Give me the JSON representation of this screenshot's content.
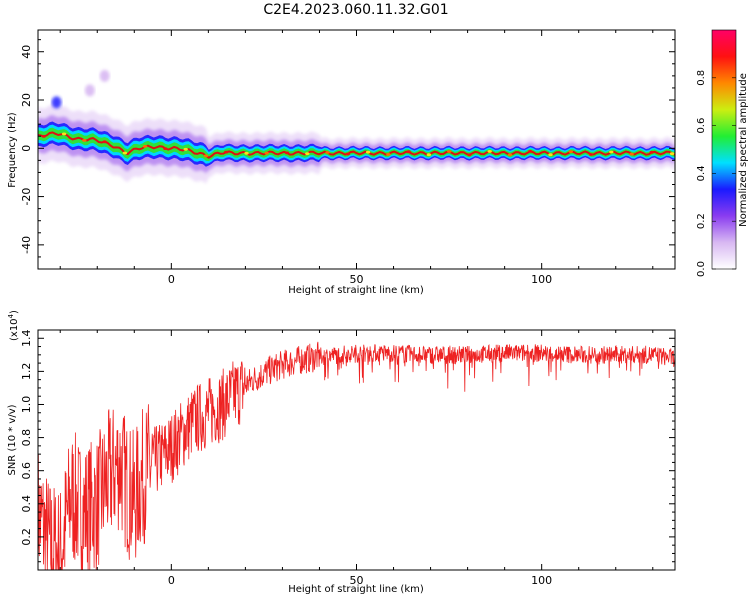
{
  "figure": {
    "title": "C2E4.2023.060.11.32.G01"
  },
  "colors": {
    "snr_line": "#ee2222",
    "ridge_core": "#dd1111",
    "colormap": [
      "#ffffff",
      "#d8b8f2",
      "#8a3cf0",
      "#1a1aff",
      "#00e0ff",
      "#22ee33",
      "#ccee11",
      "#ff8800",
      "#ff1111",
      "#ff0066"
    ]
  },
  "chart_data": [
    {
      "type": "heatmap",
      "title": "",
      "xlabel": "Height of straight line (km)",
      "ylabel": "Frequency (Hz)",
      "xlim": [
        -36,
        136
      ],
      "ylim": [
        -50,
        49
      ],
      "x_ticks": [
        0,
        50,
        100
      ],
      "y_ticks": [
        40,
        20,
        0,
        -20,
        -40
      ],
      "colorbar": {
        "label": "Normalized spectral amplitude",
        "range": [
          0,
          1
        ],
        "ticks": [
          0.0,
          0.2,
          0.4,
          0.6,
          0.8
        ]
      },
      "ridge": {
        "x": [
          -36,
          -30,
          -25,
          -20,
          -15,
          -12,
          -8,
          -4,
          0,
          4,
          8,
          10,
          14,
          20,
          30,
          40,
          60,
          80,
          100,
          120,
          136
        ],
        "frequency_hz": [
          5,
          6,
          4,
          3,
          1,
          -2,
          0,
          1,
          0,
          -1,
          -2,
          -3,
          -2,
          -2,
          -2,
          -2,
          -2,
          -2,
          -2,
          -2,
          -2
        ]
      },
      "blobs": [
        {
          "x": -31,
          "frequency_hz": 19,
          "amplitude": 0.35
        },
        {
          "x": -22,
          "frequency_hz": 24,
          "amplitude": 0.15
        },
        {
          "x": -18,
          "frequency_hz": 30,
          "amplitude": 0.12
        }
      ]
    },
    {
      "type": "line",
      "title": "",
      "xlabel": "Height of straight line (km)",
      "ylabel": "SNR (10 * v/v)",
      "y_multiplier_label": "(x10",
      "y_multiplier_exp": "4",
      "xlim": [
        -36,
        136
      ],
      "ylim": [
        0,
        1.45
      ],
      "x_ticks": [
        0,
        50,
        100
      ],
      "y_ticks": [
        0.2,
        0.4,
        0.6,
        0.8,
        1.0,
        1.2,
        1.4
      ],
      "x_tick_labels": [
        "0",
        "50",
        "100"
      ],
      "y_tick_labels": [
        "0.2",
        "0.4",
        "0.6",
        "0.8",
        "1.0",
        "1.2",
        "1.4"
      ],
      "series": [
        {
          "x": [
            -36,
            -33,
            -30,
            -27,
            -24,
            -20,
            -17,
            -14,
            -12,
            -10,
            -8,
            -6,
            -3,
            0,
            3,
            6,
            10,
            14,
            18,
            22,
            26,
            30,
            35,
            40,
            50,
            60,
            70,
            80,
            90,
            100,
            110,
            120,
            130,
            136
          ],
          "values": [
            0.35,
            0.15,
            0.1,
            0.45,
            0.35,
            0.4,
            0.55,
            0.65,
            0.5,
            0.42,
            0.55,
            0.62,
            0.68,
            0.74,
            0.82,
            0.9,
            0.95,
            1.0,
            1.08,
            1.15,
            1.2,
            1.24,
            1.27,
            1.29,
            1.31,
            1.31,
            1.3,
            1.3,
            1.31,
            1.31,
            1.3,
            1.3,
            1.3,
            1.28
          ]
        }
      ]
    }
  ]
}
